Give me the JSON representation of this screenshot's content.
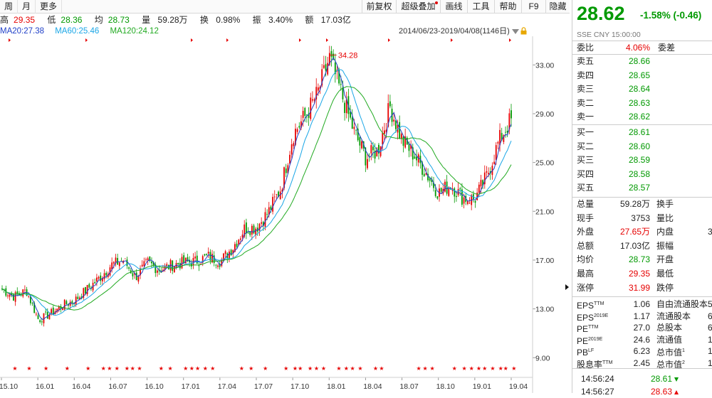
{
  "toolbar": {
    "left": [
      "周",
      "月",
      "更多"
    ],
    "right": [
      "前复权",
      "超级叠加",
      "画线",
      "工具",
      "帮助",
      "F9",
      "隐藏"
    ]
  },
  "info": {
    "high_label": "高",
    "high": "29.35",
    "low_label": "低",
    "low": "28.36",
    "avg_label": "均",
    "avg": "28.73",
    "vol_label": "量",
    "vol": "59.28万",
    "turn_label": "换",
    "turn": "0.98%",
    "amp_label": "振",
    "amp": "3.40%",
    "amt_label": "额",
    "amt": "17.03亿"
  },
  "ma": {
    "ma20": "MA20:27.38",
    "ma60": "MA60:25.46",
    "ma120": "MA120:24.12"
  },
  "date_range": "2014/06/23-2019/04/08(1146日)",
  "peak_label": "34.28",
  "colors": {
    "up": "#e60000",
    "down": "#009900",
    "ma20": "#1f3fc8",
    "ma60": "#1aa6e6",
    "ma120": "#22aa22"
  },
  "chart_data": {
    "type": "candlestick",
    "y_ticks": [
      "33.00",
      "29.00",
      "25.00",
      "21.00",
      "17.00",
      "13.00",
      "9.00"
    ],
    "x_ticks": [
      "15.10",
      "16.01",
      "16.04",
      "16.07",
      "16.10",
      "17.01",
      "17.04",
      "17.07",
      "17.10",
      "18.01",
      "18.04",
      "18.07",
      "18.10",
      "19.01",
      "19.04"
    ],
    "ylim": [
      7.5,
      35
    ],
    "close_path": [
      [
        "15.10",
        14.6
      ],
      [
        "15.11",
        14.0
      ],
      [
        "15.12",
        14.5
      ],
      [
        "16.01",
        12.1
      ],
      [
        "16.02",
        12.6
      ],
      [
        "16.03",
        13.3
      ],
      [
        "16.04",
        13.7
      ],
      [
        "16.05",
        14.6
      ],
      [
        "16.06",
        15.5
      ],
      [
        "16.07",
        16.6
      ],
      [
        "16.08",
        17.0
      ],
      [
        "16.09",
        15.6
      ],
      [
        "16.10",
        16.8
      ],
      [
        "16.11",
        16.2
      ],
      [
        "16.12",
        16.6
      ],
      [
        "17.01",
        16.8
      ],
      [
        "17.02",
        16.9
      ],
      [
        "17.03",
        17.3
      ],
      [
        "17.04",
        16.9
      ],
      [
        "17.05",
        18.0
      ],
      [
        "17.06",
        19.6
      ],
      [
        "17.07",
        19.7
      ],
      [
        "17.08",
        21.0
      ],
      [
        "17.09",
        22.9
      ],
      [
        "17.10",
        27.3
      ],
      [
        "17.11",
        28.8
      ],
      [
        "17.12",
        30.6
      ],
      [
        "18.01",
        33.6
      ],
      [
        "18.02",
        30.6
      ],
      [
        "18.03",
        27.6
      ],
      [
        "18.04",
        25.4
      ],
      [
        "18.05",
        26.0
      ],
      [
        "18.06",
        29.6
      ],
      [
        "18.07",
        26.8
      ],
      [
        "18.08",
        25.6
      ],
      [
        "18.09",
        24.1
      ],
      [
        "18.10",
        22.5
      ],
      [
        "18.11",
        23.2
      ],
      [
        "18.12",
        22.1
      ],
      [
        "19.01",
        22.0
      ],
      [
        "19.02",
        23.9
      ],
      [
        "19.03",
        26.8
      ],
      [
        "19.04",
        28.6
      ]
    ]
  },
  "panel": {
    "price": "28.62",
    "change": "-1.58% (-0.46)",
    "exchange": "SSE  CNY    15:00:00",
    "webi_label": "委比",
    "webi": "4.06%",
    "weicha_label": "委差",
    "asks": [
      {
        "label": "卖五",
        "price": "28.66"
      },
      {
        "label": "卖四",
        "price": "28.65"
      },
      {
        "label": "卖三",
        "price": "28.64"
      },
      {
        "label": "卖二",
        "price": "28.63"
      },
      {
        "label": "卖一",
        "price": "28.62"
      }
    ],
    "bids": [
      {
        "label": "买一",
        "price": "28.61"
      },
      {
        "label": "买二",
        "price": "28.60"
      },
      {
        "label": "买三",
        "price": "28.59"
      },
      {
        "label": "买四",
        "price": "28.58"
      },
      {
        "label": "买五",
        "price": "28.57"
      }
    ],
    "stats": [
      {
        "label": "总量",
        "value": "59.28万",
        "label2": "换手",
        "value2": "",
        "color": "#222"
      },
      {
        "label": "现手",
        "value": "3753",
        "label2": "量比",
        "value2": "",
        "color": "#222"
      },
      {
        "label": "外盘",
        "value": "27.65万",
        "label2": "内盘",
        "value2": "3",
        "color": "#e60000"
      },
      {
        "label": "总额",
        "value": "17.03亿",
        "label2": "振幅",
        "value2": "",
        "color": "#222"
      },
      {
        "label": "均价",
        "value": "28.73",
        "label2": "开盘",
        "value2": "",
        "color": "#009900"
      },
      {
        "label": "最高",
        "value": "29.35",
        "label2": "最低",
        "value2": "",
        "color": "#e60000"
      },
      {
        "label": "涨停",
        "value": "31.99",
        "label2": "跌停",
        "value2": "",
        "color": "#e60000"
      }
    ],
    "fundamentals": [
      {
        "label": "EPS",
        "sup": "TTM",
        "value": "1.06",
        "label2": "自由流通股本",
        "value2": "5"
      },
      {
        "label": "EPS",
        "sup": "2019E",
        "value": "1.17",
        "label2": "流通股本",
        "value2": "6"
      },
      {
        "label": "PE",
        "sup": "TTM",
        "value": "27.0",
        "label2": "总股本",
        "value2": "6"
      },
      {
        "label": "PE",
        "sup": "2019E",
        "value": "24.6",
        "label2": "流通值",
        "value2": "1"
      },
      {
        "label": "PB",
        "sup": "LF",
        "value": "6.23",
        "label2": "总市值",
        "sup2": "1",
        "value2": "1"
      },
      {
        "label": "股息率",
        "sup": "TTM",
        "value": "2.45",
        "label2": "总市值",
        "sup2": "2",
        "value2": "1"
      }
    ],
    "ticks": [
      {
        "time": "14:56:24",
        "price": "28.61",
        "dir": "down"
      },
      {
        "time": "14:56:27",
        "price": "28.63",
        "dir": "up"
      }
    ]
  }
}
